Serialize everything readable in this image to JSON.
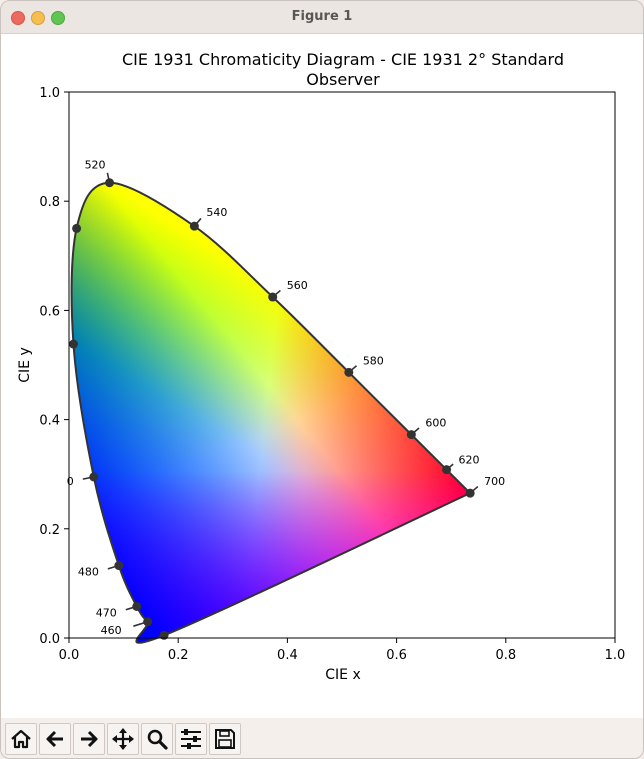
{
  "window": {
    "title": "Figure 1"
  },
  "chart": {
    "title_line1": "CIE 1931 Chromaticity Diagram - CIE 1931 2° Standard",
    "title_line2": "Observer",
    "xlabel": "CIE x",
    "ylabel": "CIE y",
    "xticks": [
      "0.0",
      "0.2",
      "0.4",
      "0.6",
      "0.8",
      "1.0"
    ],
    "yticks": [
      "0.0",
      "0.2",
      "0.4",
      "0.6",
      "0.8",
      "1.0"
    ],
    "wavelength_labels": [
      "460",
      "470",
      "480",
      "0",
      "520",
      "540",
      "560",
      "580",
      "600",
      "620",
      "700"
    ]
  },
  "chart_data": {
    "type": "scatter",
    "xlim": [
      0,
      1
    ],
    "ylim": [
      0,
      1
    ],
    "grid": false,
    "spectral_locus": [
      [
        0.1741,
        0.005
      ],
      [
        0.144,
        0.0297
      ],
      [
        0.1241,
        0.0578
      ],
      [
        0.0913,
        0.1327
      ],
      [
        0.0454,
        0.295
      ],
      [
        0.0082,
        0.5384
      ],
      [
        0.0139,
        0.7502
      ],
      [
        0.0743,
        0.8338
      ],
      [
        0.2296,
        0.7543
      ],
      [
        0.3731,
        0.6245
      ],
      [
        0.5125,
        0.4866
      ],
      [
        0.627,
        0.3725
      ],
      [
        0.6915,
        0.3083
      ],
      [
        0.7347,
        0.2653
      ]
    ],
    "marked_points": [
      {
        "label": "460",
        "x": 0.144,
        "y": 0.0297
      },
      {
        "label": "470",
        "x": 0.1241,
        "y": 0.0578
      },
      {
        "label": "480",
        "x": 0.0913,
        "y": 0.1327
      },
      {
        "label": "0",
        "x": 0.0454,
        "y": 0.295
      },
      {
        "label": "",
        "x": 0.0082,
        "y": 0.5384
      },
      {
        "label": "",
        "x": 0.0139,
        "y": 0.7502
      },
      {
        "label": "520",
        "x": 0.0743,
        "y": 0.8338
      },
      {
        "label": "540",
        "x": 0.2296,
        "y": 0.7543
      },
      {
        "label": "560",
        "x": 0.3731,
        "y": 0.6245
      },
      {
        "label": "580",
        "x": 0.5125,
        "y": 0.4866
      },
      {
        "label": "600",
        "x": 0.627,
        "y": 0.3725
      },
      {
        "label": "620",
        "x": 0.6915,
        "y": 0.3083
      },
      {
        "label": "700",
        "x": 0.7347,
        "y": 0.2653
      },
      {
        "label": "",
        "x": 0.1741,
        "y": 0.005
      }
    ]
  },
  "toolbar": {
    "buttons": [
      {
        "name": "home-icon",
        "glyph": "⌂"
      },
      {
        "name": "back-icon",
        "glyph": "←"
      },
      {
        "name": "forward-icon",
        "glyph": "→"
      },
      {
        "name": "pan-icon",
        "glyph": "✥"
      },
      {
        "name": "zoom-icon",
        "glyph": "⌕"
      },
      {
        "name": "configure-subplots-icon",
        "glyph": "☰"
      },
      {
        "name": "save-icon",
        "glyph": "▣"
      }
    ]
  }
}
